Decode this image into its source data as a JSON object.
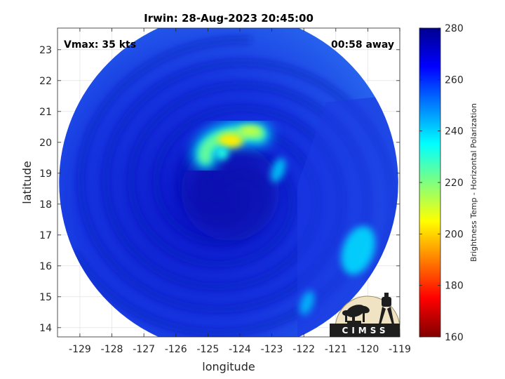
{
  "chart_data": {
    "type": "heatmap",
    "title": "Irwin: 28-Aug-2023 20:45:00",
    "annotations": {
      "top_left": "Vmax: 35 kts",
      "top_right": "00:58 away"
    },
    "xlabel": "longitude",
    "ylabel": "latitude",
    "xlim": [
      -129.7,
      -119
    ],
    "ylim": [
      13.7,
      23.7
    ],
    "x_ticks": [
      -129,
      -128,
      -127,
      -126,
      -125,
      -124,
      -123,
      -122,
      -121,
      -120,
      -119
    ],
    "y_ticks": [
      14,
      15,
      16,
      17,
      18,
      19,
      20,
      21,
      22,
      23
    ],
    "grid": true,
    "swath": {
      "center_lon": -124.35,
      "center_lat": 18.7,
      "radius_deg": 5.3
    },
    "storm_center": {
      "lon": -124.3,
      "lat": 18.4
    },
    "features": [
      {
        "name": "curved cold band",
        "lon": -124.2,
        "lat": 20.1,
        "min_brightness_temp": 203
      },
      {
        "name": "eastern cold patch",
        "lon": -120.3,
        "lat": 16.5,
        "min_brightness_temp": 238
      },
      {
        "name": "cold streak",
        "lon": -122.8,
        "lat": 19.1,
        "min_brightness_temp": 240
      },
      {
        "name": "southeast cold spot",
        "lon": -121.9,
        "lat": 14.8,
        "min_brightness_temp": 242
      }
    ],
    "background_brightness_temp": 268,
    "colorbar": {
      "label": "Brightness Temp - Horizontal Polarization",
      "range": [
        160,
        280
      ],
      "ticks": [
        160,
        180,
        200,
        220,
        240,
        260,
        280
      ],
      "colormap": "jet"
    }
  },
  "logo": {
    "text": "CIMSS"
  }
}
